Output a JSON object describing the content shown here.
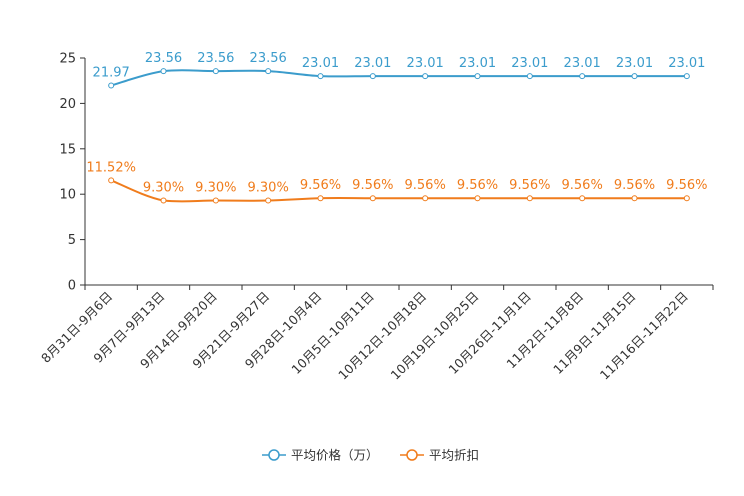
{
  "chart_data": {
    "type": "line",
    "categories": [
      "8月31日-9月6日",
      "9月7日-9月13日",
      "9月14日-9月20日",
      "9月21日-9月27日",
      "9月28日-10月4日",
      "10月5日-10月11日",
      "10月12日-10月18日",
      "10月19日-10月25日",
      "10月26日-11月1日",
      "11月2日-11月8日",
      "11月9日-11月15日",
      "11月16日-11月22日"
    ],
    "series": [
      {
        "name": "平均价格（万）",
        "color": "#3b9ccc",
        "values": [
          21.97,
          23.56,
          23.56,
          23.56,
          23.01,
          23.01,
          23.01,
          23.01,
          23.01,
          23.01,
          23.01,
          23.01
        ],
        "labels": [
          "21.97",
          "23.56",
          "23.56",
          "23.56",
          "23.01",
          "23.01",
          "23.01",
          "23.01",
          "23.01",
          "23.01",
          "23.01",
          "23.01"
        ]
      },
      {
        "name": "平均折扣",
        "color": "#f07c1c",
        "values": [
          11.52,
          9.3,
          9.3,
          9.3,
          9.56,
          9.56,
          9.56,
          9.56,
          9.56,
          9.56,
          9.56,
          9.56
        ],
        "labels": [
          "11.52%",
          "9.30%",
          "9.30%",
          "9.30%",
          "9.56%",
          "9.56%",
          "9.56%",
          "9.56%",
          "9.56%",
          "9.56%",
          "9.56%",
          "9.56%"
        ]
      }
    ],
    "yticks": [
      "0",
      "5",
      "10",
      "15",
      "20",
      "25"
    ],
    "ylim": [
      0,
      25
    ],
    "title": "",
    "xlabel": "",
    "ylabel": "",
    "legend_position": "bottom-center"
  }
}
